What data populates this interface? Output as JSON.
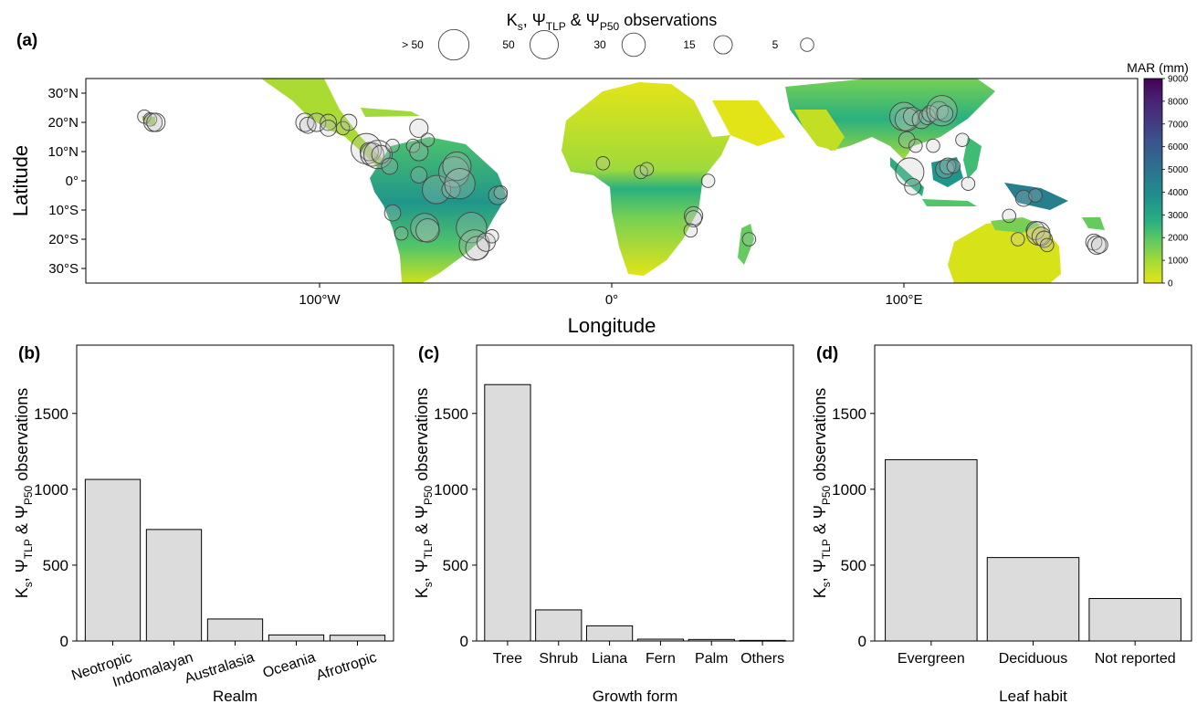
{
  "figure": {
    "legend_title": {
      "main": "K",
      "s_sub": "s",
      "sep1": ", Ψ",
      "tlp_sub": "TLP",
      "sep2": " & Ψ",
      "p50_sub": "P50",
      "tail": " observations"
    },
    "size_legend": [
      {
        "label": "> 50",
        "size": 60
      },
      {
        "label": "50",
        "size": 50
      },
      {
        "label": "30",
        "size": 30
      },
      {
        "label": "15",
        "size": 15
      },
      {
        "label": "5",
        "size": 5
      }
    ],
    "colorbar": {
      "title": "MAR (mm)",
      "min": 0,
      "max": 9000,
      "ticks": [
        "0",
        "1000",
        "2000",
        "3000",
        "4000",
        "5000",
        "6000",
        "7000",
        "8000",
        "9000"
      ],
      "colors": [
        "#e2e418",
        "#a9db33",
        "#65cb5e",
        "#2ab07f",
        "#1f958b",
        "#277f8e",
        "#31688e",
        "#3b528b",
        "#453781",
        "#482173",
        "#440154"
      ]
    },
    "colors": {
      "bar_fill": "#dcdcdc",
      "bar_stroke": "#000000",
      "point_stroke": "#444444",
      "axis": "#000000"
    }
  },
  "chart_data": [
    {
      "panel": "(a)",
      "type": "scatter",
      "title": "",
      "xlabel": "Longitude",
      "ylabel": "Latitude",
      "xlim": [
        -180,
        180
      ],
      "ylim": [
        -35,
        35
      ],
      "x_ticks": [
        {
          "value": -100,
          "label": "100°W"
        },
        {
          "value": 0,
          "label": "0°"
        },
        {
          "value": 100,
          "label": "100°E"
        }
      ],
      "y_ticks": [
        {
          "value": 30,
          "label": "30°N"
        },
        {
          "value": 20,
          "label": "20°N"
        },
        {
          "value": 10,
          "label": "10°N"
        },
        {
          "value": 0,
          "label": "0°"
        },
        {
          "value": -10,
          "label": "10°S"
        },
        {
          "value": -20,
          "label": "20°S"
        },
        {
          "value": -30,
          "label": "30°S"
        }
      ],
      "points": [
        {
          "lon": -160,
          "lat": 22,
          "n": 5
        },
        {
          "lon": -158,
          "lat": 21,
          "n": 5
        },
        {
          "lon": -157,
          "lat": 20,
          "n": 15
        },
        {
          "lon": -156,
          "lat": 20,
          "n": 15
        },
        {
          "lon": -105,
          "lat": 20,
          "n": 15
        },
        {
          "lon": -104,
          "lat": 19,
          "n": 10
        },
        {
          "lon": -101,
          "lat": 20,
          "n": 15
        },
        {
          "lon": -97,
          "lat": 20,
          "n": 10
        },
        {
          "lon": -97,
          "lat": 18,
          "n": 10
        },
        {
          "lon": -92,
          "lat": 18,
          "n": 5
        },
        {
          "lon": -90,
          "lat": 20,
          "n": 10
        },
        {
          "lon": -84,
          "lat": 11,
          "n": 60
        },
        {
          "lon": -83,
          "lat": 10,
          "n": 15
        },
        {
          "lon": -82,
          "lat": 9,
          "n": 30
        },
        {
          "lon": -80,
          "lat": 9,
          "n": 50
        },
        {
          "lon": -79,
          "lat": 9,
          "n": 15
        },
        {
          "lon": -76,
          "lat": 5,
          "n": 10
        },
        {
          "lon": -75,
          "lat": 12,
          "n": 5
        },
        {
          "lon": -68,
          "lat": 12,
          "n": 5
        },
        {
          "lon": -66,
          "lat": 10,
          "n": 15
        },
        {
          "lon": -66,
          "lat": 18,
          "n": 15
        },
        {
          "lon": -63,
          "lat": 14,
          "n": 5
        },
        {
          "lon": -66,
          "lat": 2,
          "n": 10
        },
        {
          "lon": -60,
          "lat": -3,
          "n": 50
        },
        {
          "lon": -54,
          "lat": 3,
          "n": 60
        },
        {
          "lon": -53,
          "lat": 5,
          "n": 50
        },
        {
          "lon": -55,
          "lat": -3,
          "n": 15
        },
        {
          "lon": -52,
          "lat": -1,
          "n": 60
        },
        {
          "lon": -75,
          "lat": -11,
          "n": 10
        },
        {
          "lon": -72,
          "lat": -18,
          "n": 5
        },
        {
          "lon": -64,
          "lat": -16,
          "n": 50
        },
        {
          "lon": -63,
          "lat": -17,
          "n": 30
        },
        {
          "lon": -48,
          "lat": -16,
          "n": 60
        },
        {
          "lon": -47,
          "lat": -22,
          "n": 60
        },
        {
          "lon": -46,
          "lat": -23,
          "n": 30
        },
        {
          "lon": -43,
          "lat": -21,
          "n": 15
        },
        {
          "lon": -41,
          "lat": -19,
          "n": 5
        },
        {
          "lon": -39,
          "lat": -5,
          "n": 15
        },
        {
          "lon": -38,
          "lat": -4,
          "n": 5
        },
        {
          "lon": -3,
          "lat": 6,
          "n": 5
        },
        {
          "lon": 10,
          "lat": 3,
          "n": 5
        },
        {
          "lon": 12,
          "lat": 4,
          "n": 5
        },
        {
          "lon": 28,
          "lat": -12,
          "n": 15
        },
        {
          "lon": 28,
          "lat": -13,
          "n": 10
        },
        {
          "lon": 27,
          "lat": -17,
          "n": 5
        },
        {
          "lon": 33,
          "lat": 0,
          "n": 5
        },
        {
          "lon": 47,
          "lat": -20,
          "n": 5
        },
        {
          "lon": 100,
          "lat": 22,
          "n": 50
        },
        {
          "lon": 101,
          "lat": 21,
          "n": 30
        },
        {
          "lon": 103,
          "lat": 22,
          "n": 15
        },
        {
          "lon": 106,
          "lat": 21,
          "n": 15
        },
        {
          "lon": 108,
          "lat": 22,
          "n": 10
        },
        {
          "lon": 109,
          "lat": 23,
          "n": 10
        },
        {
          "lon": 112,
          "lat": 24,
          "n": 15
        },
        {
          "lon": 113,
          "lat": 24,
          "n": 60
        },
        {
          "lon": 114,
          "lat": 23,
          "n": 10
        },
        {
          "lon": 101,
          "lat": 14,
          "n": 10
        },
        {
          "lon": 104,
          "lat": 12,
          "n": 5
        },
        {
          "lon": 102,
          "lat": 3,
          "n": 50
        },
        {
          "lon": 103,
          "lat": -2,
          "n": 10
        },
        {
          "lon": 110,
          "lat": 12,
          "n": 5
        },
        {
          "lon": 114,
          "lat": 4,
          "n": 15
        },
        {
          "lon": 115,
          "lat": 5,
          "n": 10
        },
        {
          "lon": 117,
          "lat": 5,
          "n": 5
        },
        {
          "lon": 120,
          "lat": 14,
          "n": 5
        },
        {
          "lon": 122,
          "lat": -1,
          "n": 5
        },
        {
          "lon": 141,
          "lat": -6,
          "n": 10
        },
        {
          "lon": 145,
          "lat": -5,
          "n": 5
        },
        {
          "lon": 136,
          "lat": -12,
          "n": 5
        },
        {
          "lon": 139,
          "lat": -20,
          "n": 5
        },
        {
          "lon": 145,
          "lat": -17,
          "n": 15
        },
        {
          "lon": 146,
          "lat": -18,
          "n": 30
        },
        {
          "lon": 147,
          "lat": -19,
          "n": 15
        },
        {
          "lon": 148,
          "lat": -20,
          "n": 10
        },
        {
          "lon": 149,
          "lat": -22,
          "n": 5
        },
        {
          "lon": 165,
          "lat": -21,
          "n": 10
        },
        {
          "lon": 166,
          "lat": -22,
          "n": 15
        },
        {
          "lon": 167,
          "lat": -22,
          "n": 10
        }
      ]
    },
    {
      "panel": "(b)",
      "type": "bar",
      "xlabel": "Realm",
      "ylabel_parts": [
        "K",
        "s",
        ", Ψ",
        "TLP",
        " & Ψ",
        "P50",
        " observations"
      ],
      "ylim": [
        0,
        1950
      ],
      "y_ticks": [
        0,
        500,
        1000,
        1500
      ],
      "categories": [
        "Neotropic",
        "Indomalayan",
        "Australasia",
        "Oceania",
        "Afrotropic"
      ],
      "values": [
        1065,
        735,
        145,
        40,
        38
      ],
      "tick_rotation": -18
    },
    {
      "panel": "(c)",
      "type": "bar",
      "xlabel": "Growth form",
      "ylabel_parts": [
        "K",
        "s",
        ", Ψ",
        "TLP",
        " & Ψ",
        "P50",
        " observations"
      ],
      "ylim": [
        0,
        1950
      ],
      "y_ticks": [
        0,
        500,
        1000,
        1500
      ],
      "categories": [
        "Tree",
        "Shrub",
        "Liana",
        "Fern",
        "Palm",
        "Others"
      ],
      "values": [
        1690,
        205,
        100,
        12,
        10,
        4
      ],
      "tick_rotation": 0
    },
    {
      "panel": "(d)",
      "type": "bar",
      "xlabel": "Leaf habit",
      "ylabel_parts": [
        "K",
        "s",
        ", Ψ",
        "TLP",
        " & Ψ",
        "P50",
        " observations"
      ],
      "ylim": [
        0,
        1950
      ],
      "y_ticks": [
        0,
        500,
        1000,
        1500
      ],
      "categories": [
        "Evergreen",
        "Deciduous",
        "Not reported"
      ],
      "values": [
        1195,
        550,
        280
      ],
      "tick_rotation": 0
    }
  ]
}
